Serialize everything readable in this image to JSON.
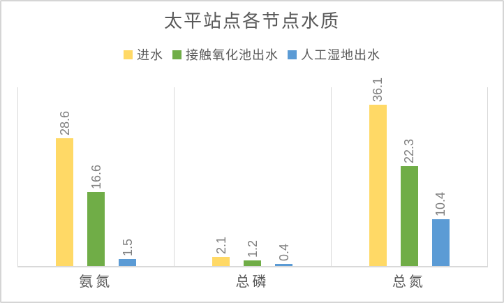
{
  "chart_data": {
    "type": "bar",
    "title": "太平站点各节点水质",
    "categories": [
      "氨氮",
      "总磷",
      "总氮"
    ],
    "series": [
      {
        "name": "进水",
        "color": "#FFD966",
        "values": [
          28.6,
          2.1,
          36.1
        ]
      },
      {
        "name": "接触氧化池出水",
        "color": "#70AD47",
        "values": [
          16.6,
          1.2,
          22.3
        ]
      },
      {
        "name": "人工湿地出水",
        "color": "#5B9BD5",
        "values": [
          1.5,
          0.4,
          10.4
        ]
      }
    ],
    "xlabel": "",
    "ylabel": "",
    "ylim": [
      0,
      40
    ],
    "y_axis_labels_visible": false,
    "data_labels": true,
    "data_label_rotation": -90,
    "legend_position": "top",
    "gridlines": "vertical category separators only"
  },
  "theme": {
    "background": "#FFFFFF",
    "border_color": "#D5D5D5",
    "grid_color": "#D9D9D9",
    "title_color": "#595959",
    "axis_text_color": "#595959",
    "data_label_color": "#7F7F7F"
  }
}
